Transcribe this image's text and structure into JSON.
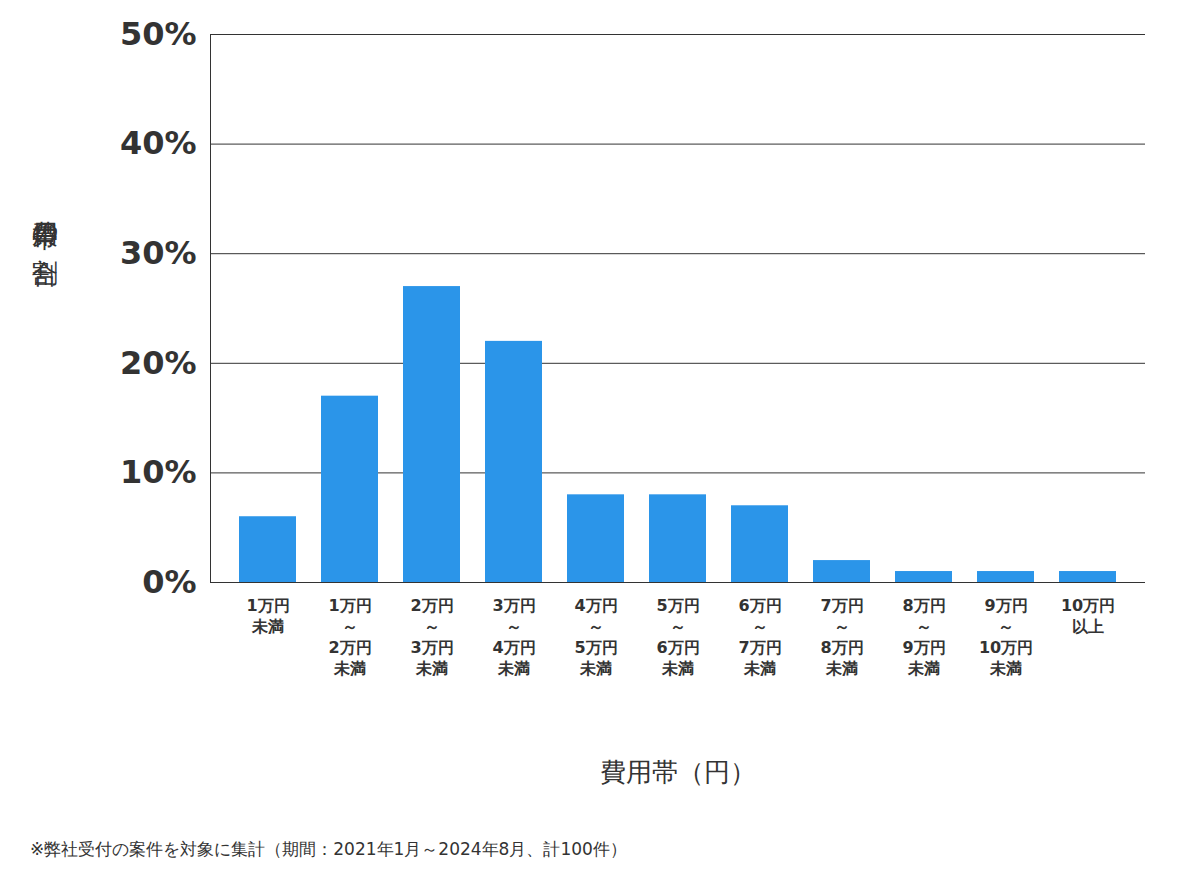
{
  "chart_data": {
    "type": "bar",
    "y_label": "費用帯の割合",
    "x_label": "費用帯（円）",
    "caption": "※弊社受付の案件を対象に集計（期間：2021年1月～2024年8月、計100件）",
    "categories": [
      "1万円\n未満",
      "1万円\n～\n2万円\n未満",
      "2万円\n～\n3万円\n未満",
      "3万円\n～\n4万円\n未満",
      "4万円\n～\n5万円\n未満",
      "5万円\n～\n6万円\n未満",
      "6万円\n～\n7万円\n未満",
      "7万円\n～\n8万円\n未満",
      "8万円\n～\n9万円\n未満",
      "9万円\n～\n10万円\n未満",
      "10万円\n以上"
    ],
    "values": [
      6,
      17,
      27,
      22,
      8,
      8,
      7,
      2,
      1,
      1,
      1
    ],
    "color": "#2b95e9",
    "ylim": [
      0,
      50
    ],
    "yticks": [
      {
        "value": 0,
        "label": "0%"
      },
      {
        "value": 10,
        "label": "10%"
      },
      {
        "value": 20,
        "label": "20%"
      },
      {
        "value": 30,
        "label": "30%"
      },
      {
        "value": 40,
        "label": "40%"
      },
      {
        "value": 50,
        "label": "50%"
      }
    ],
    "grid": true
  }
}
